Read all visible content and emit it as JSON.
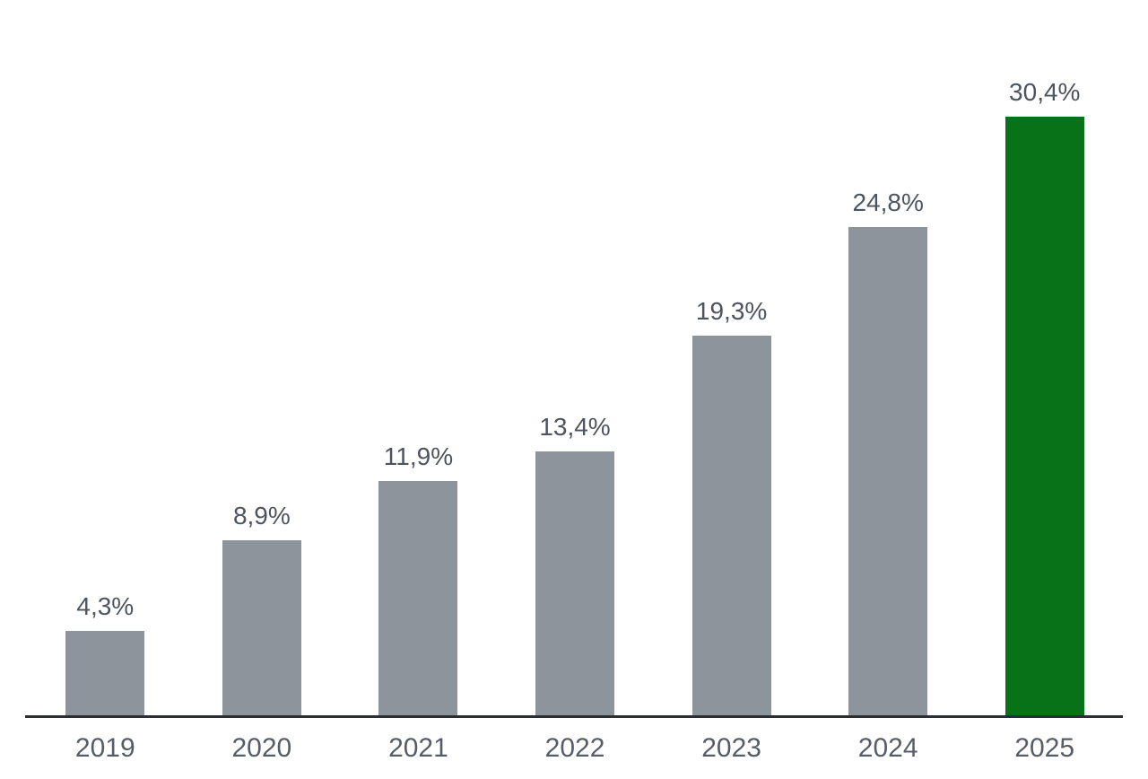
{
  "chart_data": {
    "type": "bar",
    "title": "",
    "xlabel": "",
    "ylabel": "",
    "categories": [
      "2019",
      "2020",
      "2021",
      "2022",
      "2023",
      "2024",
      "2025"
    ],
    "values": [
      4.3,
      8.9,
      11.9,
      13.4,
      19.3,
      24.8,
      30.4
    ],
    "value_labels": [
      "4,3%",
      "8,9%",
      "11,9%",
      "13,4%",
      "19,3%",
      "24,8%",
      "30,4%"
    ],
    "unit": "%",
    "decimal_separator": ",",
    "ylim": [
      0,
      32
    ],
    "grid": false,
    "legend": false,
    "y_axis_visible": false,
    "highlight_index": 6,
    "colors": {
      "bar_default": "#8E949C",
      "bar_highlight": "#077218",
      "value_label_text": "#4D545F",
      "tick_label_text": "#565D66",
      "axis_line": "#2B2F34",
      "background": "#FFFFFF"
    }
  }
}
